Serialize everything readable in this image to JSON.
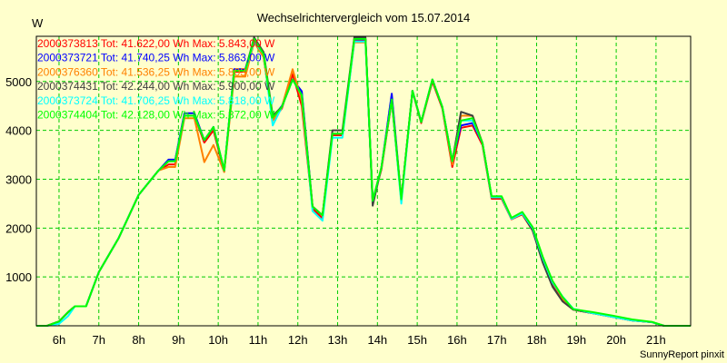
{
  "chart_data": {
    "type": "line",
    "title": "Wechselrichtervergleich vom 15.07.2014",
    "ylabel": "W",
    "xlabel": "",
    "footer": "SunnyReport pinxit",
    "xlim": [
      5.43,
      21.87
    ],
    "ylim": [
      0,
      5925
    ],
    "grid": true,
    "x_ticks": [
      6,
      7,
      8,
      9,
      10,
      11,
      12,
      13,
      14,
      15,
      16,
      17,
      18,
      19,
      20,
      21
    ],
    "x_tick_labels": [
      "6h",
      "7h",
      "8h",
      "9h",
      "10h",
      "11h",
      "12h",
      "13h",
      "14h",
      "15h",
      "16h",
      "17h",
      "18h",
      "19h",
      "20h",
      "21h"
    ],
    "y_ticks": [
      1000,
      2000,
      3000,
      4000,
      5000
    ],
    "y_tick_labels": [
      "1000",
      "2000",
      "3000",
      "4000",
      "5000"
    ],
    "legend_placement": "top-left",
    "x": [
      5.43,
      5.7,
      6.0,
      6.23,
      6.4,
      6.68,
      7.0,
      7.5,
      8.0,
      8.5,
      8.75,
      8.92,
      9.15,
      9.4,
      9.65,
      9.88,
      10.15,
      10.4,
      10.68,
      10.9,
      11.14,
      11.37,
      11.6,
      11.87,
      12.1,
      12.37,
      12.62,
      12.87,
      13.12,
      13.42,
      13.7,
      13.88,
      14.1,
      14.36,
      14.6,
      14.88,
      15.1,
      15.38,
      15.63,
      15.88,
      16.1,
      16.39,
      16.64,
      16.87,
      17.12,
      17.37,
      17.64,
      17.9,
      18.15,
      18.4,
      18.65,
      18.92,
      19.4,
      19.9,
      20.4,
      20.9,
      21.2,
      21.87
    ],
    "series": [
      {
        "name": "2000373813",
        "legend": "2000373813 Tot: 41.622,00 Wh Max: 5.843,00 W",
        "color": "#ff0000",
        "values": [
          0,
          0,
          90,
          280,
          400,
          400,
          1100,
          1800,
          2680,
          3180,
          3300,
          3300,
          4300,
          4300,
          3750,
          4000,
          3150,
          5200,
          5200,
          5843,
          5500,
          4200,
          4450,
          5150,
          4500,
          2400,
          2200,
          3900,
          3900,
          5843,
          5843,
          2550,
          3200,
          4600,
          2550,
          4800,
          4150,
          5000,
          4450,
          3250,
          4050,
          4100,
          3700,
          2600,
          2600,
          2180,
          2280,
          1950,
          1360,
          860,
          540,
          330,
          260,
          185,
          110,
          75,
          0,
          0
        ]
      },
      {
        "name": "2000373721",
        "legend": "2000373721 Tot: 41.740,25 Wh Max: 5.863,00 W",
        "color": "#0000ff",
        "values": [
          0,
          0,
          90,
          280,
          400,
          400,
          1100,
          1800,
          2680,
          3180,
          3400,
          3400,
          4350,
          4350,
          3800,
          4070,
          3180,
          5250,
          5250,
          5863,
          5560,
          4260,
          4500,
          5040,
          4800,
          2440,
          2260,
          3930,
          3930,
          5863,
          5863,
          2560,
          3240,
          4750,
          2590,
          4810,
          4170,
          5040,
          4480,
          3370,
          4100,
          4150,
          3740,
          2630,
          2630,
          2190,
          2300,
          2000,
          1390,
          890,
          560,
          330,
          260,
          185,
          110,
          75,
          0,
          0
        ]
      },
      {
        "name": "2000376360",
        "legend": "2000376360 Tot: 41.536,25 Wh Max: 5.803,00 W",
        "color": "#ff8000",
        "values": [
          0,
          0,
          90,
          280,
          400,
          400,
          1100,
          1800,
          2680,
          3180,
          3250,
          3250,
          4250,
          4250,
          3350,
          3700,
          3150,
          5100,
          5100,
          5803,
          5500,
          4200,
          4480,
          5250,
          4600,
          2440,
          2260,
          3930,
          3930,
          5803,
          5803,
          2560,
          3240,
          4630,
          2590,
          4810,
          4170,
          5040,
          4480,
          3300,
          4300,
          4300,
          3740,
          2630,
          2630,
          2190,
          2300,
          2000,
          1390,
          890,
          560,
          330,
          260,
          185,
          110,
          75,
          0,
          0
        ]
      },
      {
        "name": "2000374431",
        "legend": "2000374431 Tot: 42.244,00 Wh Max: 5.900,00 W",
        "color": "#404040",
        "values": [
          0,
          0,
          90,
          280,
          400,
          400,
          1100,
          1800,
          2680,
          3180,
          3370,
          3370,
          4300,
          4300,
          3800,
          4070,
          3180,
          5220,
          5220,
          5900,
          5600,
          4300,
          4480,
          5040,
          4720,
          2440,
          2260,
          4000,
          4000,
          5900,
          5900,
          2460,
          3240,
          4630,
          2590,
          4810,
          4170,
          5040,
          4480,
          3370,
          4380,
          4300,
          3740,
          2630,
          2630,
          2190,
          2300,
          1950,
          1300,
          800,
          500,
          330,
          260,
          185,
          110,
          75,
          0,
          0
        ]
      },
      {
        "name": "2000373724",
        "legend": "2000373724 Tot: 41.706,25 Wh Max: 5.818,00 W",
        "color": "#00ffff",
        "values": [
          0,
          0,
          40,
          200,
          400,
          400,
          1100,
          1800,
          2680,
          3180,
          3370,
          3370,
          4300,
          4300,
          3800,
          4070,
          3180,
          5220,
          5220,
          5818,
          5560,
          4100,
          4480,
          5040,
          4720,
          2350,
          2150,
          3850,
          3850,
          5818,
          5818,
          2560,
          3240,
          4630,
          2500,
          4810,
          4170,
          5040,
          4480,
          3370,
          4200,
          4200,
          3740,
          2630,
          2630,
          2190,
          2300,
          2000,
          1390,
          890,
          600,
          350,
          260,
          185,
          110,
          75,
          0,
          0
        ]
      },
      {
        "name": "2000374404",
        "legend": "2000374404 Tot: 42.128,00 Wh Max: 5.872,00 W",
        "color": "#00ff00",
        "values": [
          0,
          0,
          90,
          280,
          400,
          400,
          1100,
          1800,
          2680,
          3180,
          3370,
          3370,
          4300,
          4300,
          3800,
          4070,
          3180,
          5220,
          5220,
          5872,
          5560,
          4260,
          4480,
          5040,
          4720,
          2440,
          2260,
          3930,
          3930,
          5872,
          5872,
          2560,
          3240,
          4630,
          2590,
          4810,
          4170,
          5040,
          4480,
          3370,
          4200,
          4250,
          3740,
          2650,
          2650,
          2210,
          2330,
          2020,
          1420,
          920,
          590,
          340,
          280,
          210,
          130,
          80,
          0,
          0
        ]
      }
    ]
  }
}
